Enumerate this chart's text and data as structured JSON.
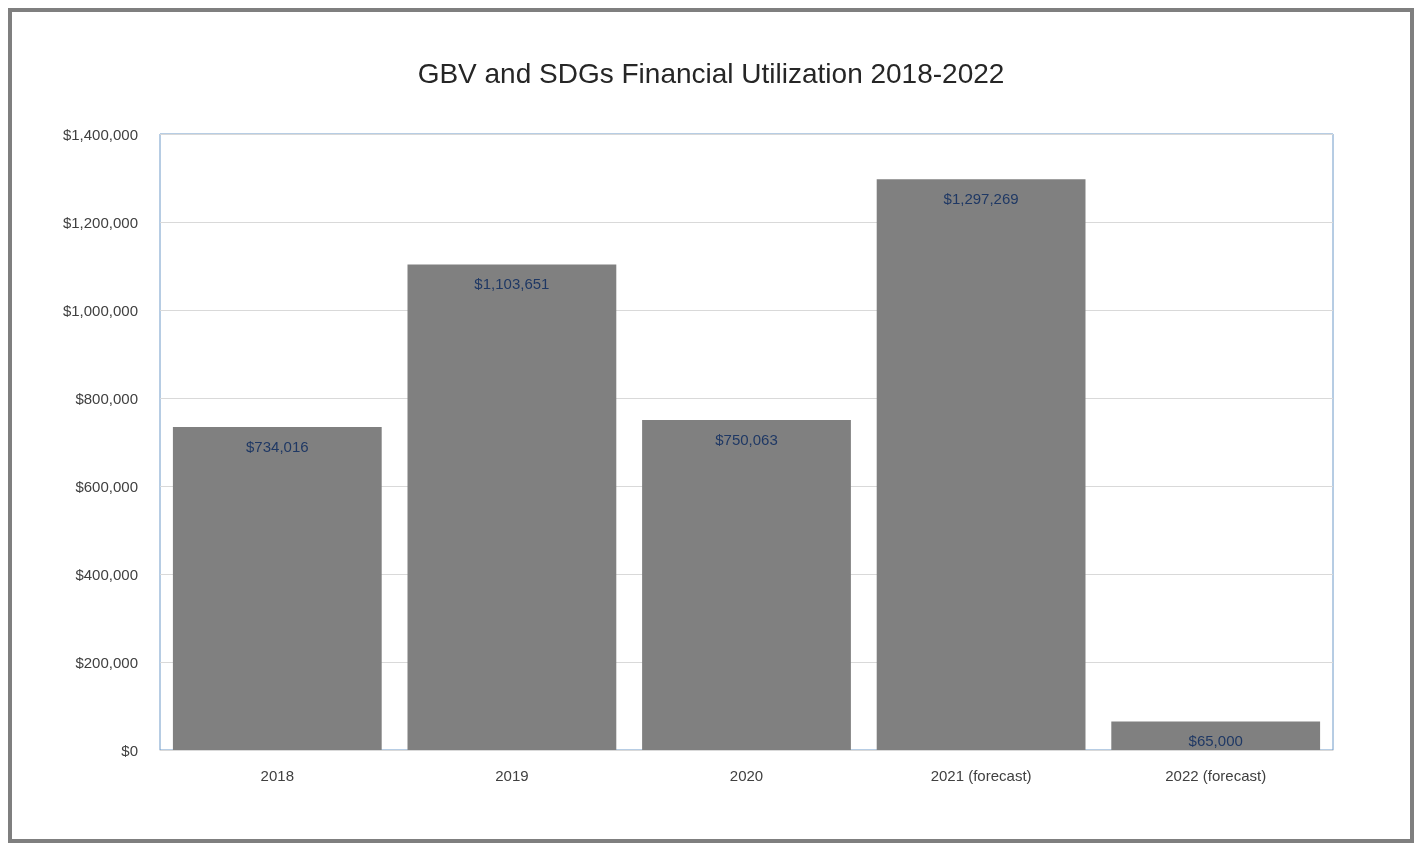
{
  "chart_data": {
    "type": "bar",
    "title": "GBV and SDGs Financial Utilization 2018-2022",
    "categories": [
      "2018",
      "2019",
      "2020",
      "2021 (forecast)",
      "2022 (forecast)"
    ],
    "values": [
      734016,
      1103651,
      750063,
      1297269,
      65000
    ],
    "value_labels": [
      "$734,016",
      "$1,103,651",
      "$750,063",
      "$1,297,269",
      "$65,000"
    ],
    "color": "#808080",
    "ylim": [
      0,
      1400000
    ],
    "yticks": [
      {
        "value": 0,
        "label": "$0"
      },
      {
        "value": 200000,
        "label": "$200,000"
      },
      {
        "value": 400000,
        "label": "$400,000"
      },
      {
        "value": 600000,
        "label": "$600,000"
      },
      {
        "value": 800000,
        "label": "$800,000"
      },
      {
        "value": 1000000,
        "label": "$1,000,000"
      },
      {
        "value": 1200000,
        "label": "$1,200,000"
      },
      {
        "value": 1400000,
        "label": "$1,400,000"
      }
    ],
    "grid": "y"
  }
}
